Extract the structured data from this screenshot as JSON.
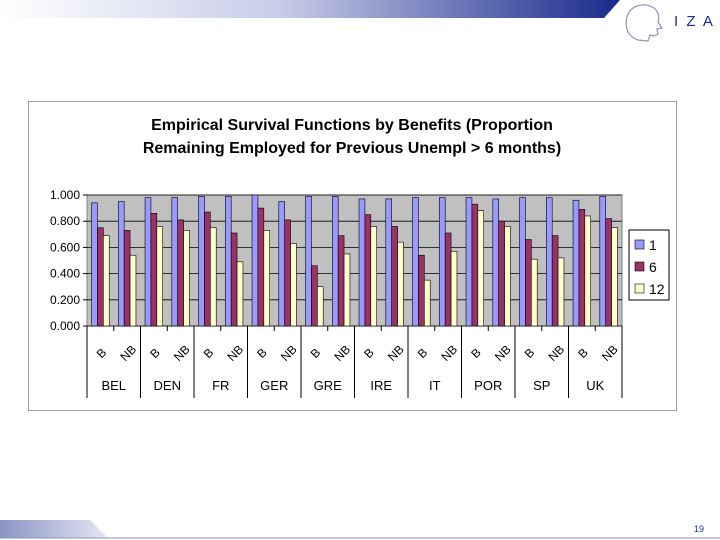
{
  "slide": {
    "page_number": "19",
    "logo_text": "I Z A"
  },
  "colors": {
    "series_1": "#9999ff",
    "series_6": "#993366",
    "series_12": "#ffffcc",
    "plot_bg": "#c0c0c0",
    "brand_blue": "#1a2a8c"
  },
  "chart_data": {
    "type": "bar",
    "title_lines": [
      "Empirical Survival Functions by Benefits (Proportion",
      "Remaining Employed for Previous Unempl > 6 months)"
    ],
    "groups": [
      "BEL",
      "DEN",
      "FR",
      "GER",
      "GRE",
      "IRE",
      "IT",
      "POR",
      "SP",
      "UK"
    ],
    "subcategories": [
      "B",
      "NB"
    ],
    "ylim": [
      0,
      1
    ],
    "yticks": [
      "0.000",
      "0.200",
      "0.400",
      "0.600",
      "0.800",
      "1.000"
    ],
    "legend_position": "right",
    "grid": true,
    "series": [
      {
        "name": "1",
        "values": [
          0.94,
          0.95,
          0.98,
          0.98,
          0.99,
          0.99,
          1.0,
          0.95,
          0.99,
          0.99,
          0.97,
          0.97,
          0.98,
          0.98,
          0.98,
          0.97,
          0.98,
          0.98,
          0.96,
          0.99
        ]
      },
      {
        "name": "6",
        "values": [
          0.75,
          0.73,
          0.86,
          0.81,
          0.87,
          0.71,
          0.9,
          0.81,
          0.46,
          0.69,
          0.85,
          0.76,
          0.54,
          0.71,
          0.93,
          0.8,
          0.66,
          0.69,
          0.89,
          0.82
        ]
      },
      {
        "name": "12",
        "values": [
          0.69,
          0.54,
          0.76,
          0.73,
          0.75,
          0.49,
          0.73,
          0.63,
          0.3,
          0.55,
          0.76,
          0.64,
          0.35,
          0.57,
          0.88,
          0.76,
          0.51,
          0.52,
          0.84,
          0.75
        ]
      }
    ]
  }
}
